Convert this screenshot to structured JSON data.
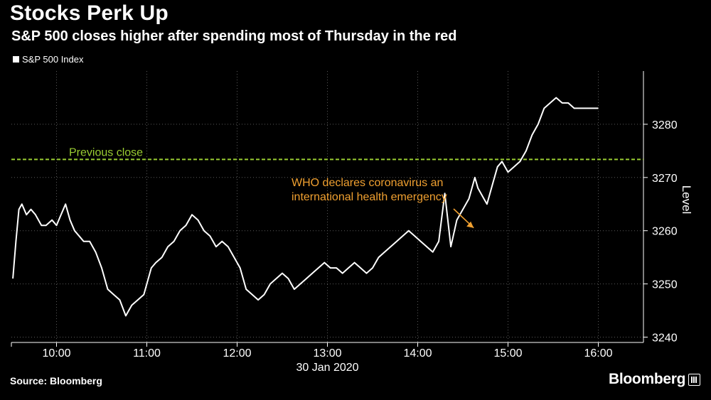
{
  "header": {
    "title": "Stocks Perk Up",
    "subtitle": "S&P 500 closes higher after spending most of Thursday in the red"
  },
  "footer": {
    "source": "Source: Bloomberg",
    "brand": "Bloomberg"
  },
  "colors": {
    "background": "#000000",
    "series": "#ffffff",
    "previous_close": "#9acd32",
    "annotation": "#f0a030",
    "grid": "#5a5a5a"
  },
  "chart_data": {
    "type": "line",
    "title": "Stocks Perk Up",
    "subtitle": "S&P 500 closes higher after spending most of Thursday in the red",
    "xlabel": "30 Jan 2020",
    "ylabel": "Level",
    "x_ticks": [
      "10:00",
      "11:00",
      "12:00",
      "13:00",
      "14:00",
      "15:00",
      "16:00"
    ],
    "y_ticks": [
      3240,
      3250,
      3260,
      3270,
      3280
    ],
    "xlim": [
      "09:30",
      "16:30"
    ],
    "ylim": [
      3239,
      3290
    ],
    "grid": true,
    "legend": "top-left",
    "series": [
      {
        "name": "S&P 500 Index",
        "x": [
          "09:31",
          "09:33",
          "09:35",
          "09:37",
          "09:40",
          "09:43",
          "09:46",
          "09:50",
          "09:53",
          "09:57",
          "10:00",
          "10:03",
          "10:06",
          "10:09",
          "10:12",
          "10:15",
          "10:18",
          "10:22",
          "10:26",
          "10:30",
          "10:34",
          "10:38",
          "10:42",
          "10:46",
          "10:50",
          "10:54",
          "10:58",
          "11:00",
          "11:03",
          "11:06",
          "11:10",
          "11:14",
          "11:18",
          "11:22",
          "11:26",
          "11:30",
          "11:34",
          "11:38",
          "11:42",
          "11:46",
          "11:50",
          "11:54",
          "11:58",
          "12:02",
          "12:06",
          "12:10",
          "12:14",
          "12:18",
          "12:22",
          "12:26",
          "12:30",
          "12:34",
          "12:38",
          "12:42",
          "12:46",
          "12:50",
          "12:54",
          "12:58",
          "13:02",
          "13:06",
          "13:10",
          "13:14",
          "13:18",
          "13:22",
          "13:26",
          "13:30",
          "13:34",
          "13:38",
          "13:42",
          "13:46",
          "13:50",
          "13:54",
          "13:58",
          "14:02",
          "14:06",
          "14:10",
          "14:14",
          "14:18",
          "14:22",
          "14:26",
          "14:30",
          "14:34",
          "14:38",
          "14:40",
          "14:42",
          "14:44",
          "14:46",
          "14:48",
          "14:50",
          "14:53",
          "14:56",
          "15:00",
          "15:04",
          "15:08",
          "15:12",
          "15:16",
          "15:20",
          "15:24",
          "15:28",
          "15:32",
          "15:36",
          "15:40",
          "15:44",
          "15:48",
          "15:52",
          "15:56",
          "16:00"
        ],
        "values": [
          3251,
          3258,
          3264,
          3265,
          3263,
          3264,
          3263,
          3261,
          3261,
          3262,
          3261,
          3263,
          3265,
          3262,
          3260,
          3259,
          3258,
          3258,
          3256,
          3253,
          3249,
          3248,
          3247,
          3244,
          3246,
          3247,
          3248,
          3250,
          3253,
          3254,
          3255,
          3257,
          3258,
          3260,
          3261,
          3263,
          3262,
          3260,
          3259,
          3257,
          3258,
          3257,
          3255,
          3253,
          3249,
          3248,
          3247,
          3248,
          3250,
          3251,
          3252,
          3251,
          3249,
          3250,
          3251,
          3252,
          3253,
          3254,
          3253,
          3253,
          3252,
          3253,
          3254,
          3253,
          3252,
          3253,
          3255,
          3256,
          3257,
          3258,
          3259,
          3260,
          3259,
          3258,
          3257,
          3256,
          3258,
          3267,
          3257,
          3262,
          3264,
          3266,
          3270,
          3268,
          3267,
          3266,
          3265,
          3267,
          3269,
          3272,
          3273,
          3271,
          3272,
          3273,
          3275,
          3278,
          3280,
          3283,
          3284,
          3285,
          3284,
          3284,
          3283,
          3283,
          3283,
          3283,
          3283
        ]
      }
    ],
    "reference_lines": [
      {
        "label": "Previous close",
        "value": 3273.4
      }
    ],
    "annotations": [
      {
        "text_lines": [
          "WHO declares coronavirus an",
          "international health emergency"
        ],
        "x": "14:40",
        "y": 3260
      }
    ]
  }
}
